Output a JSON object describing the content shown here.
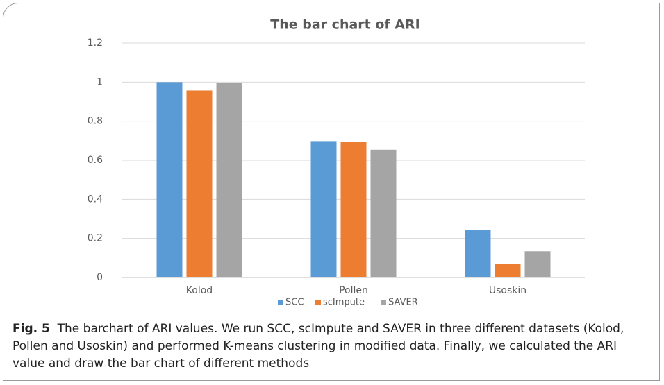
{
  "chart_data": {
    "type": "bar",
    "title": "The bar chart of ARI",
    "categories": [
      "Kolod",
      "Pollen",
      "Usoskin"
    ],
    "series": [
      {
        "name": "SCC",
        "color": "#5b9bd5",
        "values": [
          1.0,
          0.698,
          0.242
        ]
      },
      {
        "name": "scImpute",
        "color": "#ed7d31",
        "values": [
          0.957,
          0.694,
          0.069
        ]
      },
      {
        "name": "SAVER",
        "color": "#a5a5a5",
        "values": [
          0.997,
          0.654,
          0.134
        ]
      }
    ],
    "ylim": [
      0,
      1.2
    ],
    "yticks": [
      0,
      0.2,
      0.4,
      0.6,
      0.8,
      1,
      1.2
    ],
    "grid": true,
    "legend": "bottom"
  },
  "caption": {
    "label": "Fig. 5",
    "text": "The barchart of ARI values. We run SCC, scImpute and SAVER in three different datasets (Kolod, Pollen and Usoskin) and performed K-means clustering in modified data. Finally, we calculated the ARI value and draw the bar chart of different methods"
  }
}
